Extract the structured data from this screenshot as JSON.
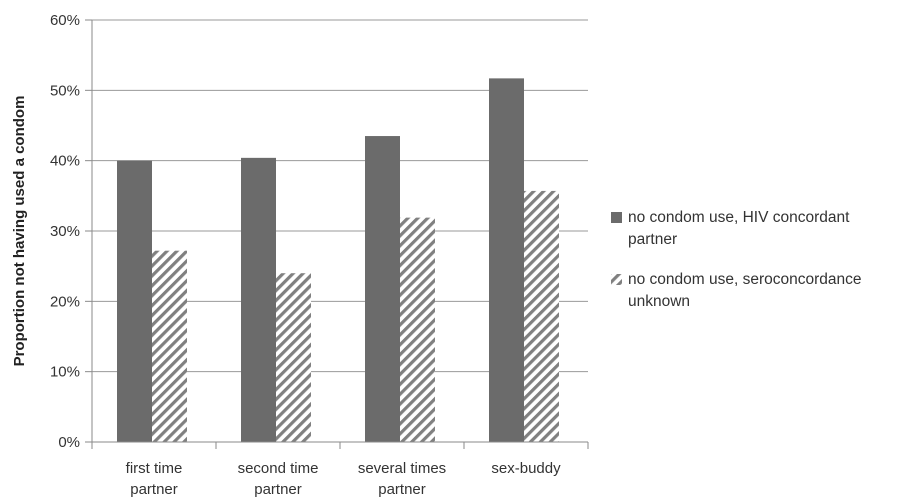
{
  "chart_data": {
    "type": "bar",
    "title": "",
    "xlabel": "",
    "ylabel": "Proportion not having used a condom",
    "ylim": [
      0,
      60
    ],
    "yticks": [
      "0%",
      "10%",
      "20%",
      "30%",
      "40%",
      "50%",
      "60%"
    ],
    "grid": true,
    "legend_position": "right",
    "categories": [
      [
        "first time",
        "partner"
      ],
      [
        "second time",
        "partner"
      ],
      [
        "several times",
        "partner"
      ],
      [
        "sex-buddy"
      ]
    ],
    "series": [
      {
        "name": "no condom use, HIV concordant partner",
        "legend_lines": [
          "no condom use, HIV concordant",
          "partner"
        ],
        "fill": "solid",
        "color": "#6b6b6b",
        "values": [
          40.0,
          40.4,
          43.5,
          51.7
        ]
      },
      {
        "name": "no condom use, seroconcordance unknown",
        "legend_lines": [
          "no condom use, seroconcordance",
          "unknown"
        ],
        "fill": "hatched",
        "color": "#808080",
        "values": [
          27.2,
          24.0,
          31.9,
          35.7
        ]
      }
    ]
  }
}
